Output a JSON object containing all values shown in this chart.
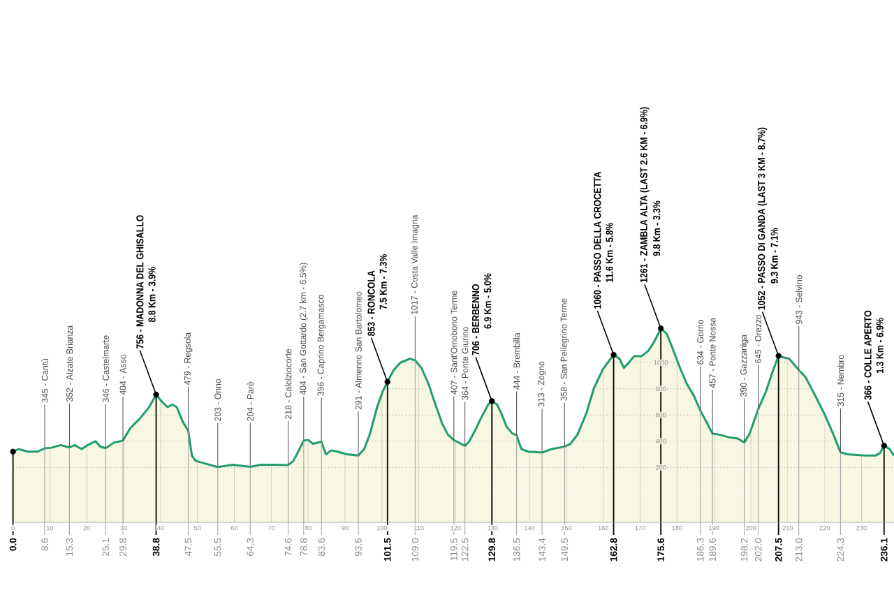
{
  "chart_data": {
    "type": "area",
    "xlim": [
      0,
      238.8
    ],
    "ylim": [
      -220,
      1300
    ],
    "xticks": [
      0,
      10,
      20,
      30,
      40,
      50,
      60,
      70,
      80,
      90,
      100,
      110,
      120,
      130,
      140,
      150,
      160,
      170,
      180,
      190,
      200,
      210,
      220,
      230
    ],
    "yticks": [
      200,
      400,
      600,
      800,
      1000
    ],
    "grid": true,
    "bands": [
      {
        "axis": "y",
        "from": -220,
        "to": 0,
        "color": "#f8f7e2"
      }
    ],
    "series": [
      {
        "color": "#1f9d6c",
        "x": [
          0,
          1.5,
          4.0,
          6.6,
          8.6,
          10.4,
          12.9,
          15.3,
          16.7,
          18.6,
          20.2,
          22.4,
          23.6,
          25.1,
          27.4,
          29.8,
          31.8,
          34.3,
          36.9,
          38.8,
          40.4,
          41.9,
          43.2,
          44.4,
          46.0,
          47.5,
          48.5,
          49.5,
          52.0,
          55.5,
          59.6,
          64.3,
          67.2,
          71.0,
          74.6,
          76.0,
          77.3,
          78.8,
          80.0,
          81.3,
          83.6,
          84.8,
          86.3,
          88.0,
          90.5,
          93.6,
          95.2,
          96.8,
          98.7,
          100.2,
          101.5,
          103.1,
          105.0,
          107.6,
          109.0,
          110.7,
          112.6,
          114.5,
          116.4,
          117.9,
          119.5,
          120.8,
          122.5,
          123.7,
          125.2,
          127.1,
          128.8,
          129.8,
          131.2,
          132.4,
          133.8,
          135.3,
          136.5,
          137.8,
          139.7,
          143.4,
          146.0,
          149.5,
          151.1,
          153.0,
          155.5,
          157.4,
          159.9,
          162.8,
          164.4,
          165.6,
          166.9,
          168.4,
          170.4,
          172.2,
          173.8,
          175.6,
          177.2,
          178.9,
          180.8,
          182.6,
          184.5,
          186.3,
          188.1,
          189.6,
          191.5,
          194.0,
          196.5,
          198.2,
          199.7,
          202.0,
          204.1,
          206.0,
          207.5,
          208.8,
          210.4,
          213.0,
          214.8,
          217.4,
          219.9,
          222.4,
          224.3,
          226.2,
          228.7,
          231.3,
          233.8,
          235.0,
          236.1,
          237.6,
          238.8
        ],
        "values": [
          320,
          340,
          320,
          320,
          345,
          350,
          370,
          352,
          370,
          340,
          370,
          400,
          360,
          346,
          390,
          404,
          500,
          570,
          660,
          756,
          700,
          660,
          680,
          660,
          550,
          479,
          290,
          250,
          230,
          203,
          220,
          204,
          220,
          220,
          218,
          250,
          320,
          404,
          410,
          380,
          396,
          300,
          330,
          320,
          300,
          291,
          340,
          460,
          660,
          780,
          853,
          940,
          1000,
          1030,
          1017,
          960,
          840,
          680,
          530,
          450,
          407,
          390,
          364,
          400,
          480,
          590,
          680,
          706,
          680,
          610,
          510,
          460,
          444,
          340,
          320,
          313,
          340,
          358,
          380,
          450,
          620,
          800,
          950,
          1060,
          1030,
          960,
          1000,
          1050,
          1050,
          1090,
          1160,
          1261,
          1220,
          1100,
          960,
          840,
          750,
          634,
          540,
          457,
          450,
          430,
          420,
          390,
          460,
          645,
          780,
          940,
          1052,
          1040,
          1030,
          943,
          890,
          750,
          610,
          450,
          315,
          300,
          295,
          290,
          290,
          310,
          366,
          340,
          290
        ]
      },
      {
        "type": "scatter",
        "color": "#000000",
        "marker": "circle",
        "x": [
          0,
          38.8,
          101.5,
          129.8,
          162.8,
          175.6,
          207.5,
          236.1
        ],
        "values": [
          320,
          756,
          853,
          706,
          1060,
          1261,
          1052,
          366
        ]
      }
    ],
    "ref_lines": [
      {
        "axis": "x",
        "value": 0,
        "label": "0.0",
        "color": "#000000"
      },
      {
        "axis": "x",
        "value": 8.6,
        "label": "8.6",
        "color": "#a6a6a6"
      },
      {
        "axis": "x",
        "value": 15.3,
        "label": "15.3",
        "color": "#a6a6a6"
      },
      {
        "axis": "x",
        "value": 25.1,
        "label": "25.1",
        "color": "#a6a6a6"
      },
      {
        "axis": "x",
        "value": 29.8,
        "label": "29.8",
        "color": "#a6a6a6"
      },
      {
        "axis": "x",
        "value": 38.8,
        "label": "38.8",
        "color": "#000000"
      },
      {
        "axis": "x",
        "value": 47.5,
        "label": "47.5",
        "color": "#a6a6a6"
      },
      {
        "axis": "x",
        "value": 55.5,
        "label": "55.5",
        "color": "#a6a6a6"
      },
      {
        "axis": "x",
        "value": 64.3,
        "label": "64.3",
        "color": "#a6a6a6"
      },
      {
        "axis": "x",
        "value": 74.6,
        "label": "74.6",
        "color": "#a6a6a6"
      },
      {
        "axis": "x",
        "value": 78.8,
        "label": "78.8",
        "color": "#a6a6a6"
      },
      {
        "axis": "x",
        "value": 83.6,
        "label": "83.6",
        "color": "#a6a6a6"
      },
      {
        "axis": "x",
        "value": 93.6,
        "label": "93.6",
        "color": "#a6a6a6"
      },
      {
        "axis": "x",
        "value": 101.5,
        "label": "101.5",
        "color": "#000000"
      },
      {
        "axis": "x",
        "value": 109.0,
        "label": "109.0",
        "color": "#a6a6a6"
      },
      {
        "axis": "x",
        "value": 119.5,
        "label": "119.5",
        "color": "#a6a6a6"
      },
      {
        "axis": "x",
        "value": 122.5,
        "label": "122.5",
        "color": "#a6a6a6"
      },
      {
        "axis": "x",
        "value": 129.8,
        "label": "129.8",
        "color": "#000000"
      },
      {
        "axis": "x",
        "value": 136.5,
        "label": "136.5",
        "color": "#a6a6a6"
      },
      {
        "axis": "x",
        "value": 143.4,
        "label": "143.4",
        "color": "#a6a6a6"
      },
      {
        "axis": "x",
        "value": 149.5,
        "label": "149.5",
        "color": "#a6a6a6"
      },
      {
        "axis": "x",
        "value": 162.8,
        "label": "162.8",
        "color": "#000000"
      },
      {
        "axis": "x",
        "value": 175.6,
        "label": "175.6",
        "color": "#000000"
      },
      {
        "axis": "x",
        "value": 186.3,
        "label": "186.3",
        "color": "#a6a6a6"
      },
      {
        "axis": "x",
        "value": 189.6,
        "label": "189.6",
        "color": "#a6a6a6"
      },
      {
        "axis": "x",
        "value": 198.2,
        "label": "198.2",
        "color": "#a6a6a6"
      },
      {
        "axis": "x",
        "value": 202.0,
        "label": "202.0",
        "color": "#a6a6a6"
      },
      {
        "axis": "x",
        "value": 207.5,
        "label": "207.5",
        "color": "#000000"
      },
      {
        "axis": "x",
        "value": 213.0,
        "label": "213.0",
        "color": "#a6a6a6"
      },
      {
        "axis": "x",
        "value": 224.3,
        "label": "224.3",
        "color": "#a6a6a6"
      },
      {
        "axis": "x",
        "value": 236.1,
        "label": "236.1",
        "color": "#000000"
      }
    ],
    "annotations": [
      {
        "text": "345 - Cantù",
        "x": 8.6,
        "y": 345
      },
      {
        "text": "352 - Alzate Brianza",
        "x": 15.3,
        "y": 352
      },
      {
        "text": "346 - Castelmarte",
        "x": 25.1,
        "y": 346
      },
      {
        "text": "404 - Asso",
        "x": 29.8,
        "y": 404
      },
      {
        "text": "756 - MADONNA DEL GHISALLO",
        "x": 38.8,
        "y": 756
      },
      "8.8 Km - 3.9%",
      {
        "text": "479 - Regsola",
        "x": 47.5,
        "y": 479
      },
      {
        "text": "203 - Onno",
        "x": 55.5,
        "y": 203
      },
      {
        "text": "204 - Parè",
        "x": 64.3,
        "y": 204
      },
      {
        "text": "218 - Calolziocorte",
        "x": 74.6,
        "y": 218
      },
      {
        "text": "404 - San Gottardo (2.7 km - 6.5%)",
        "x": 78.8,
        "y": 404
      },
      {
        "text": "396 - Caprino Bergamasco",
        "x": 83.6,
        "y": 396
      },
      {
        "text": "291 - Almenno San Bartolomeo",
        "x": 93.6,
        "y": 291
      },
      {
        "text": "853 - RONCOLA",
        "x": 101.5,
        "y": 853
      },
      "7.5 Km - 7.3%",
      {
        "text": "1017 - Costa Valle Imagna",
        "x": 109.0,
        "y": 1017
      },
      {
        "text": "407 - Sant'Omobono Terme",
        "x": 119.5,
        "y": 407
      },
      {
        "text": "364 - Ponte Giurino",
        "x": 122.5,
        "y": 364
      },
      {
        "text": "706 - BERBENNO",
        "x": 129.8,
        "y": 706
      },
      "6.9 Km - 5.0%",
      {
        "text": "444 - Brembilla",
        "x": 136.5,
        "y": 444
      },
      {
        "text": "313 - Zogno",
        "x": 143.4,
        "y": 313
      },
      {
        "text": "358 - San Pellegrino Terme",
        "x": 149.5,
        "y": 358
      },
      {
        "text": "1060 - PASSO DELLA CROCETTA",
        "x": 162.8,
        "y": 1060
      },
      "11.6 Km - 5.8%",
      {
        "text": "1261 - ZAMBLA ALTA (LAST 2.6 KM - 6.9%)",
        "x": 175.6,
        "y": 1261
      },
      "9.8 Km - 3.3%",
      {
        "text": "634 - Gorno",
        "x": 186.3,
        "y": 634
      },
      {
        "text": "457 - Ponte Nossa",
        "x": 189.6,
        "y": 457
      },
      {
        "text": "390 - Gazzaniga",
        "x": 198.2,
        "y": 390
      },
      {
        "text": "645 - Orezzo",
        "x": 202.0,
        "y": 645
      },
      {
        "text": "1052 - PASSO DI GANDA (LAST 3 KM - 8.7%)",
        "x": 207.5,
        "y": 1052
      },
      "9.3 Km - 7.1%",
      {
        "text": "943 - Selvino",
        "x": 213.0,
        "y": 943
      },
      {
        "text": "315 - Nembro",
        "x": 224.3,
        "y": 315
      },
      {
        "text": "366 - COLLE APERTO",
        "x": 236.1,
        "y": 366
      },
      "1.3 Km - 6.9%"
    ]
  }
}
